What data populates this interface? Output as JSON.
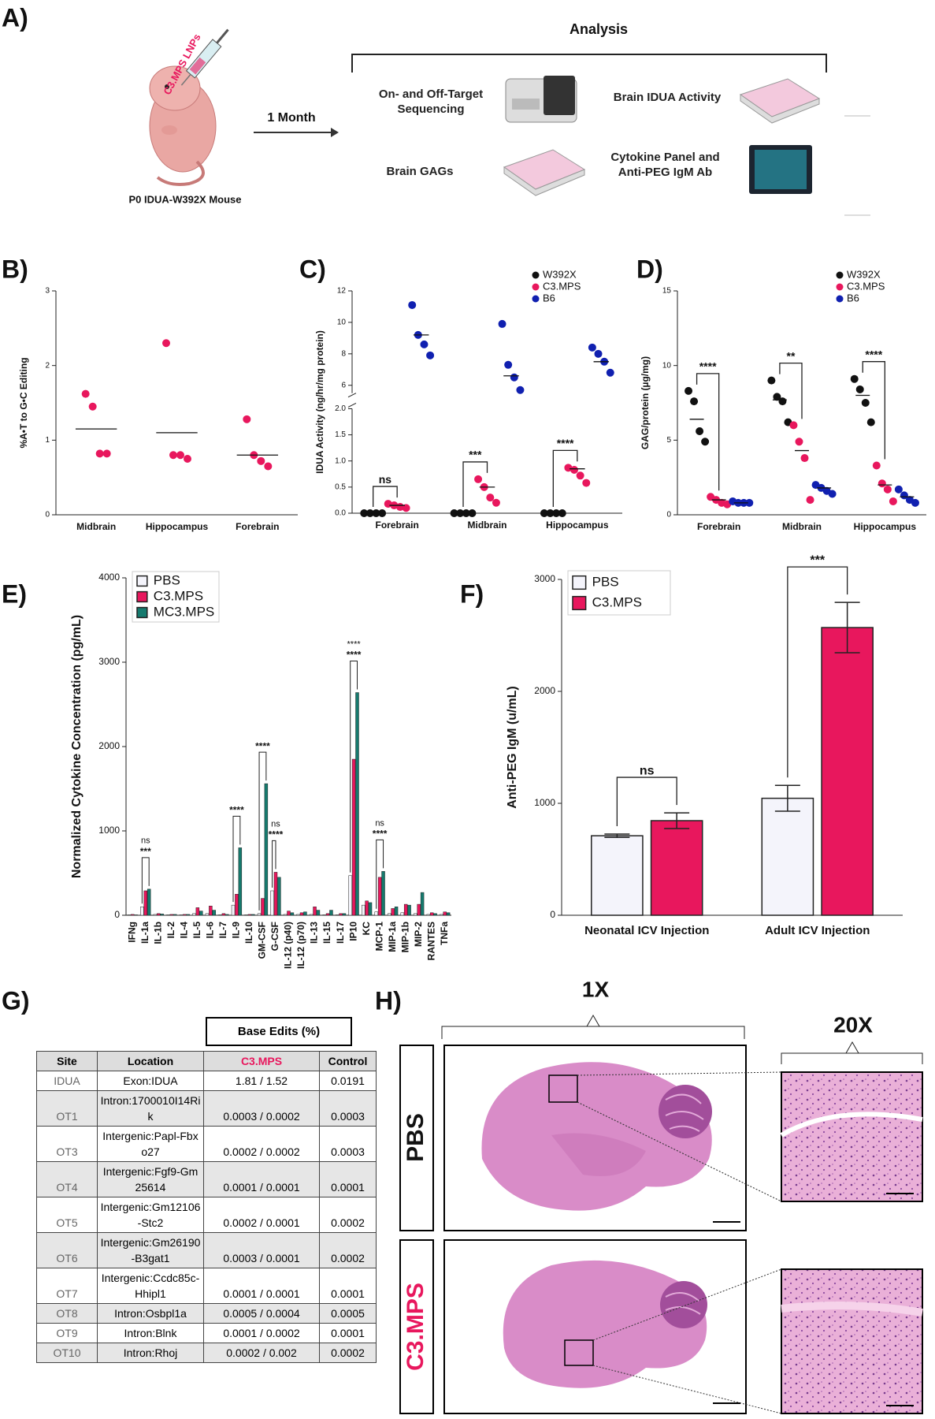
{
  "panel_labels": [
    "A)",
    "B)",
    "C)",
    "D)",
    "E)",
    "F)",
    "G)",
    "H)"
  ],
  "schematic": {
    "injection": "C3.MPS LNPs",
    "mouse": "P0 IDUA-W392X Mouse",
    "interval": "1 Month",
    "analysis": "Analysis",
    "assays": [
      "On- and Off-Target Sequencing",
      "Brain IDUA Activity",
      "Brain GAGs",
      "Cytokine Panel and Anti-PEG IgM Ab"
    ]
  },
  "chart_data": [
    {
      "type": "strip",
      "ylabel": "%A•T to G•C Editing",
      "categories": [
        "Midbrain",
        "Hippocampus",
        "Forebrain"
      ],
      "ylim": [
        0,
        3
      ],
      "yticks": [
        0,
        1,
        2,
        3
      ],
      "series": [
        {
          "color": "#e8175d",
          "values": [
            [
              1.62,
              1.45,
              0.82,
              0.82
            ],
            [
              2.3,
              0.8,
              0.8,
              0.75
            ],
            [
              1.28,
              0.8,
              0.72,
              0.65
            ]
          ],
          "means": [
            1.15,
            1.1,
            0.8
          ]
        }
      ]
    },
    {
      "type": "strip",
      "ylabel": "IDUA Activity (ng/hr/mg protein)",
      "categories": [
        "Forebrain",
        "Midbrain",
        "Hippocampus"
      ],
      "ylim": [
        0,
        2
      ],
      "yticks": [
        {
          "value": 0,
          "label": "0.0"
        },
        {
          "value": 0.5,
          "label": "0.5"
        },
        {
          "value": 1,
          "label": "1.0"
        },
        {
          "value": 1.5,
          "label": "1.5"
        },
        {
          "value": 2,
          "label": "2.0"
        }
      ],
      "ylim_upper": [
        5.5,
        12
      ],
      "yticks_upper": [
        6,
        8,
        10,
        12
      ],
      "legend": "upper right",
      "significance": [
        "ns",
        "***",
        "****"
      ],
      "series": [
        {
          "name": "W392X",
          "color": "#111111",
          "values": [
            [
              0,
              0,
              0,
              0
            ],
            [
              0,
              0,
              0,
              0
            ],
            [
              0,
              0,
              0,
              0
            ]
          ],
          "means": [
            0,
            0,
            0
          ]
        },
        {
          "name": "C3.MPS",
          "color": "#e8175d",
          "values": [
            [
              0.18,
              0.15,
              0.12,
              0.1
            ],
            [
              0.65,
              0.5,
              0.3,
              0.2
            ],
            [
              0.87,
              0.83,
              0.72,
              0.58
            ]
          ],
          "means": [
            0.15,
            0.5,
            0.85
          ]
        },
        {
          "name": "B6",
          "color": "#1020b0",
          "values": [
            [
              11.1,
              9.2,
              8.6,
              7.9
            ],
            [
              9.9,
              7.3,
              6.5,
              5.7
            ],
            [
              8.4,
              8.0,
              7.5,
              6.8
            ]
          ],
          "means": [
            9.2,
            6.6,
            7.5
          ]
        }
      ]
    },
    {
      "type": "strip",
      "ylabel": "GAG/protein (µg/mg)",
      "categories": [
        "Forebrain",
        "Midbrain",
        "Hippocampus"
      ],
      "ylim": [
        0,
        15
      ],
      "yticks": [
        0,
        5,
        10,
        15
      ],
      "legend": "upper right",
      "significance": [
        "****",
        "**",
        "****"
      ],
      "series": [
        {
          "name": "W392X",
          "color": "#111111",
          "values": [
            [
              8.3,
              7.6,
              5.6,
              4.9
            ],
            [
              9.0,
              7.9,
              7.6,
              6.2
            ],
            [
              9.1,
              8.4,
              7.5,
              6.2
            ]
          ],
          "means": [
            6.4,
            7.7,
            8.0
          ]
        },
        {
          "name": "C3.MPS",
          "color": "#e8175d",
          "values": [
            [
              1.2,
              1.0,
              0.8,
              0.7
            ],
            [
              6.0,
              4.9,
              3.8,
              1.0
            ],
            [
              3.3,
              2.1,
              1.7,
              0.9
            ]
          ],
          "means": [
            1.0,
            4.3,
            2.0
          ]
        },
        {
          "name": "B6",
          "color": "#1020b0",
          "values": [
            [
              0.9,
              0.8,
              0.8,
              0.8
            ],
            [
              2.0,
              1.8,
              1.6,
              1.4
            ],
            [
              1.7,
              1.3,
              1.0,
              0.8
            ]
          ],
          "means": [
            0.8,
            1.8,
            1.2
          ]
        }
      ]
    },
    {
      "type": "bar",
      "ylabel": "Normalized Cytokine Concentration  (pg/mL)",
      "categories": [
        "IFNg",
        "IL-1a",
        "IL-1b",
        "IL-2",
        "IL-4",
        "IL-5",
        "IL-6",
        "IL-7",
        "IL-9",
        "IL-10",
        "GM-CSF",
        "G-CSF",
        "IL-12 (p40)",
        "IL-12 (p70)",
        "IL-13",
        "IL-15",
        "IL-17",
        "IP10",
        "KC",
        "MCP-1",
        "MIP-1a",
        "MIP-1b",
        "MIP-2",
        "RANTES",
        "TNFa"
      ],
      "ylim": [
        0,
        4000
      ],
      "yticks": [
        0,
        1000,
        2000,
        3000,
        4000
      ],
      "legend": "upper left",
      "significance": [
        {
          "category": "IL-1a",
          "labels": [
            "***",
            "ns"
          ]
        },
        {
          "category": "IL-9",
          "labels": [
            "****"
          ]
        },
        {
          "category": "GM-CSF",
          "labels": [
            "****"
          ]
        },
        {
          "category": "G-CSF",
          "labels": [
            "****",
            "ns"
          ]
        },
        {
          "category": "IP10",
          "labels": [
            "****",
            "****"
          ]
        },
        {
          "category": "MCP-1",
          "labels": [
            "****",
            "ns"
          ]
        }
      ],
      "series": [
        {
          "name": "PBS",
          "color": "#f4f4fb",
          "values": [
            5,
            100,
            10,
            5,
            5,
            20,
            20,
            5,
            120,
            5,
            20,
            290,
            10,
            10,
            10,
            5,
            5,
            470,
            120,
            40,
            20,
            30,
            20,
            10,
            10
          ]
        },
        {
          "name": "C3.MPS",
          "color": "#e8175d",
          "values": [
            10,
            290,
            20,
            10,
            10,
            90,
            110,
            20,
            250,
            10,
            200,
            510,
            50,
            30,
            100,
            20,
            20,
            1850,
            170,
            450,
            80,
            130,
            130,
            30,
            40
          ]
        },
        {
          "name": "MC3.MPS",
          "color": "#157a6e",
          "values": [
            5,
            310,
            15,
            10,
            10,
            50,
            60,
            10,
            800,
            10,
            1560,
            450,
            30,
            40,
            60,
            60,
            20,
            2640,
            150,
            520,
            100,
            120,
            270,
            20,
            30
          ]
        }
      ]
    },
    {
      "type": "bar",
      "ylabel": "Anti-PEG IgM (u/mL)",
      "categories": [
        "Neonatal ICV Injection",
        "Adult ICV Injection"
      ],
      "ylim": [
        0,
        3000
      ],
      "yticks": [
        0,
        1000,
        2000,
        3000
      ],
      "legend": "upper left",
      "significance": [
        "ns",
        "***"
      ],
      "series": [
        {
          "name": "PBS",
          "color": "#f4f4fb",
          "values": [
            710,
            1045
          ],
          "errors": [
            15,
            115
          ]
        },
        {
          "name": "C3.MPS",
          "color": "#e8175d",
          "values": [
            845,
            2570
          ],
          "errors": [
            70,
            225
          ]
        }
      ]
    }
  ],
  "table": {
    "caption": "Base Edits (%)",
    "columns": [
      "Site",
      "Location",
      "C3.MPS",
      "Control"
    ],
    "rows": [
      [
        "IDUA",
        "Exon:IDUA",
        "1.81 / 1.52",
        "0.0191"
      ],
      [
        "OT1",
        "Intron:1700010I14Rik",
        "0.0003 / 0.0002",
        "0.0003"
      ],
      [
        "OT3",
        "Intergenic:Papl-Fbxo27",
        "0.0002 / 0.0002",
        "0.0003"
      ],
      [
        "OT4",
        "Intergenic:Fgf9-Gm25614",
        "0.0001 / 0.0001",
        "0.0001"
      ],
      [
        "OT5",
        "Intergenic:Gm12106-Stc2",
        "0.0002 / 0.0001",
        "0.0002"
      ],
      [
        "OT6",
        "Intergenic:Gm26190-B3gat1",
        "0.0003 / 0.0001",
        "0.0002"
      ],
      [
        "OT7",
        "Intergenic:Ccdc85c-Hhipl1",
        "0.0001 / 0.0001",
        "0.0001"
      ],
      [
        "OT8",
        "Intron:Osbpl1a",
        "0.0005 / 0.0004",
        "0.0005"
      ],
      [
        "OT9",
        "Intron:Blnk",
        "0.0001 / 0.0002",
        "0.0001"
      ],
      [
        "OT10",
        "Intron:Rhoj",
        "0.0002 / 0.002",
        "0.0002"
      ]
    ]
  },
  "histology": {
    "magnifications": [
      "1X",
      "20X"
    ],
    "groups": [
      "PBS",
      "C3.MPS"
    ]
  }
}
